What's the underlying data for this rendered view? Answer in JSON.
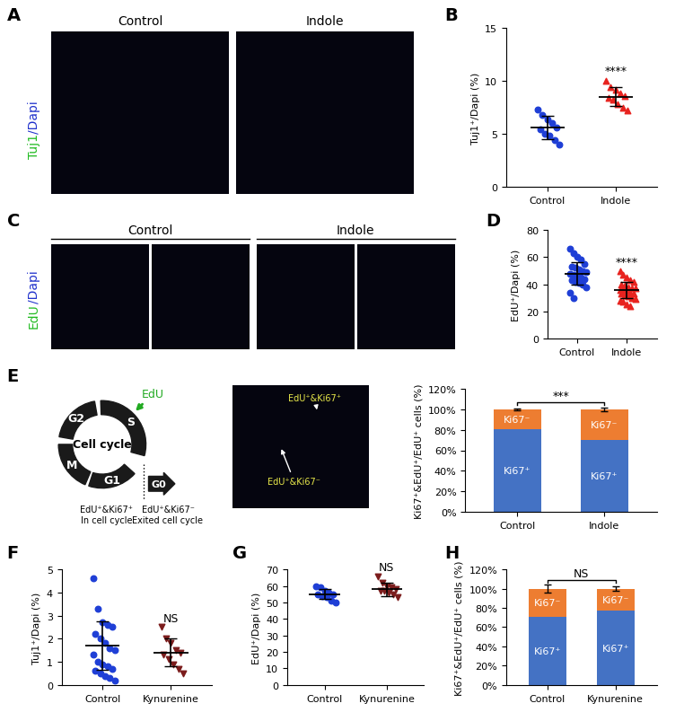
{
  "images": [
    {
      "panel": "A",
      "label_parts": [
        {
          "text": "Tuj1",
          "color": "#22bb22"
        },
        {
          "text": "/Dapi",
          "color": "#2233cc"
        }
      ],
      "headers": [
        "Control",
        "Indole"
      ]
    },
    {
      "panel": "C",
      "label_parts": [
        {
          "text": "EdU",
          "color": "#22bb22"
        },
        {
          "text": "/Dapi",
          "color": "#2233cc"
        }
      ],
      "headers": [
        "Control",
        "Indole"
      ]
    },
    {
      "panel": "E",
      "markers": [
        "EdU⁺&Ki67⁺",
        "EdU⁺&Ki67⁻"
      ]
    }
  ],
  "diagram": {
    "panel": "E",
    "center": "Cell cycle",
    "phases": [
      "G2",
      "S",
      "M",
      "G1",
      "G0"
    ],
    "marker": "EdU",
    "notes": [
      "EdU⁺&Ki67⁺\nIn cell cycle",
      "EdU⁺&Ki67⁻\nExited cell cycle"
    ]
  },
  "chart_data": [
    {
      "title": "B",
      "type": "scatter",
      "y_label": "Tuj1⁺/Dapi (%)",
      "categories": [
        "Control",
        "Indole"
      ],
      "groups": [
        {
          "color": "#1f3fd6",
          "marker": "circle",
          "values": [
            7.3,
            6.8,
            6.4,
            6.0,
            5.6,
            5.4,
            5.0,
            4.8,
            4.4,
            4.0
          ],
          "mean": 5.6,
          "sd": 1.1
        },
        {
          "color": "#e8231f",
          "marker": "triangle",
          "values": [
            10.0,
            9.4,
            9.2,
            8.8,
            8.6,
            8.4,
            8.2,
            7.8,
            7.5,
            7.2
          ],
          "mean": 8.5,
          "sd": 0.9
        }
      ],
      "ylim": [
        0,
        15
      ],
      "yticks": [
        0,
        5,
        10,
        15
      ],
      "annotations": [
        {
          "text": "****",
          "category": "Indole"
        }
      ]
    },
    {
      "title": "D",
      "type": "scatter",
      "y_label": "EdU⁺/Dapi (%)",
      "categories": [
        "Control",
        "Indole"
      ],
      "groups": [
        {
          "color": "#1f3fd6",
          "marker": "circle",
          "values": [
            66,
            63,
            60,
            58,
            55,
            53,
            52,
            51,
            50,
            49,
            48,
            47,
            46,
            45,
            44,
            43,
            42,
            41,
            40,
            38,
            34,
            30
          ],
          "mean": 48,
          "sd": 8
        },
        {
          "color": "#e8231f",
          "marker": "triangle",
          "values": [
            50,
            47,
            45,
            43,
            42,
            40,
            39,
            38,
            37,
            37,
            36,
            35,
            35,
            34,
            33,
            33,
            32,
            31,
            30,
            29,
            28,
            27,
            25,
            24
          ],
          "mean": 36,
          "sd": 6
        }
      ],
      "ylim": [
        0,
        80
      ],
      "yticks": [
        0,
        20,
        40,
        60,
        80
      ],
      "annotations": [
        {
          "text": "****",
          "category": "Indole"
        }
      ]
    },
    {
      "type": "bar",
      "stacked": true,
      "y_label": "Ki67⁺&EdU⁺/EdU⁺ cells (%)",
      "categories": [
        "Control",
        "Indole"
      ],
      "series": [
        {
          "name": "Ki67⁺",
          "color": "#4472c4",
          "values": [
            81,
            70
          ],
          "error": [
            null,
            null
          ]
        },
        {
          "name": "Ki67⁻",
          "color": "#ed7d31",
          "values": [
            19,
            30
          ],
          "error": [
            1,
            2
          ]
        }
      ],
      "ylim": [
        0,
        120
      ],
      "yticks": [
        {
          "value": 0,
          "label": "0%"
        },
        {
          "value": 20,
          "label": "20%"
        },
        {
          "value": 40,
          "label": "40%"
        },
        {
          "value": 60,
          "label": "60%"
        },
        {
          "value": 80,
          "label": "80%"
        },
        {
          "value": 100,
          "label": "100%"
        },
        {
          "value": 120,
          "label": "120%"
        }
      ],
      "annotations": [
        {
          "text": "***",
          "between": [
            "Control",
            "Indole"
          ]
        }
      ]
    },
    {
      "title": "F",
      "type": "scatter",
      "y_label": "Tuj1⁺/Dapi (%)",
      "categories": [
        "Control",
        "Kynurenine"
      ],
      "groups": [
        {
          "color": "#1f3fd6",
          "marker": "circle",
          "values": [
            4.6,
            3.3,
            2.7,
            2.6,
            2.5,
            2.2,
            2.0,
            1.8,
            1.6,
            1.5,
            1.3,
            1.0,
            0.9,
            0.8,
            0.7,
            0.6,
            0.5,
            0.4,
            0.3,
            0.2
          ],
          "mean": 1.7,
          "sd": 1.05
        },
        {
          "color": "#7b1c1c",
          "marker": "triangle_down",
          "values": [
            2.5,
            2.0,
            1.8,
            1.5,
            1.4,
            1.3,
            1.1,
            0.9,
            0.7,
            0.5
          ],
          "mean": 1.4,
          "sd": 0.6
        }
      ],
      "ylim": [
        0,
        5
      ],
      "yticks": [
        0,
        1,
        2,
        3,
        4,
        5
      ],
      "annotations": [
        {
          "text": "NS",
          "category": "Kynurenine"
        }
      ]
    },
    {
      "title": "G",
      "type": "scatter",
      "y_label": "EdU⁺/Dapi (%)",
      "categories": [
        "Control",
        "Kynurenine"
      ],
      "groups": [
        {
          "color": "#1f3fd6",
          "marker": "circle",
          "values": [
            60,
            59,
            57,
            56,
            55,
            55,
            54,
            53,
            51,
            50
          ],
          "mean": 55,
          "sd": 3
        },
        {
          "color": "#7b1c1c",
          "marker": "triangle_down",
          "values": [
            66,
            62,
            60,
            59,
            58,
            57,
            57,
            56,
            55,
            53
          ],
          "mean": 58,
          "sd": 4
        }
      ],
      "ylim": [
        0,
        70
      ],
      "yticks": [
        0,
        10,
        20,
        30,
        40,
        50,
        60,
        70
      ],
      "annotations": [
        {
          "text": "NS",
          "category": "Kynurenine"
        }
      ]
    },
    {
      "title": "H",
      "type": "bar",
      "stacked": true,
      "y_label": "Ki67⁺&EdU⁺/EdU⁺ cells (%)",
      "categories": [
        "Control",
        "Kynurenine"
      ],
      "series": [
        {
          "name": "Ki67⁺",
          "color": "#4472c4",
          "values": [
            71,
            77
          ],
          "error": [
            null,
            null
          ]
        },
        {
          "name": "Ki67⁻",
          "color": "#ed7d31",
          "values": [
            29,
            23
          ],
          "error": [
            4,
            2
          ]
        }
      ],
      "ylim": [
        0,
        120
      ],
      "yticks": [
        {
          "value": 0,
          "label": "0%"
        },
        {
          "value": 20,
          "label": "20%"
        },
        {
          "value": 40,
          "label": "40%"
        },
        {
          "value": 60,
          "label": "60%"
        },
        {
          "value": 80,
          "label": "80%"
        },
        {
          "value": 100,
          "label": "100%"
        },
        {
          "value": 120,
          "label": "120%"
        }
      ],
      "annotations": [
        {
          "text": "NS",
          "between": [
            "Control",
            "Kynurenine"
          ]
        }
      ]
    }
  ]
}
